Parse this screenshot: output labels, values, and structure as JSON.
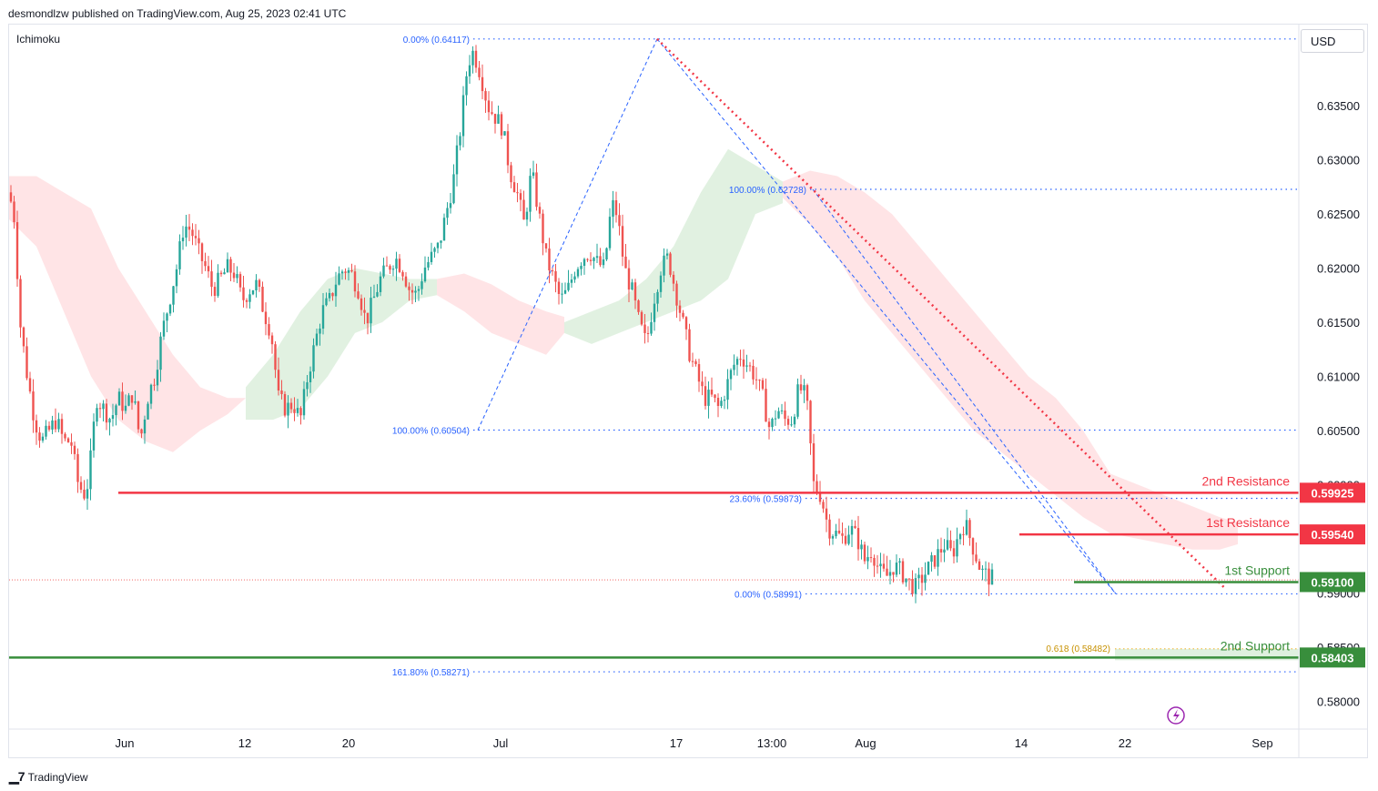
{
  "header": {
    "publisher_line": "desmondlzw published on TradingView.com, Aug 25, 2023 02:41 UTC"
  },
  "indicator": {
    "name": "Ichimoku"
  },
  "currency_button": {
    "label": "USD"
  },
  "footer": {
    "brand": "TradingView",
    "logo_icon": "tradingview-logo-icon"
  },
  "colors": {
    "bull": "#26a69a",
    "bear": "#ef5350",
    "fib": "#2962ff",
    "resistance": "#f23645",
    "support": "#388e3c",
    "golden": "#f7a600",
    "cloud_bull": "#c8e6c9",
    "cloud_bear": "#ffcdd2"
  },
  "chart_data": {
    "type": "candlestick",
    "instrument": "",
    "ylim": [
      0.5775,
      0.6425
    ],
    "y_ticks": [
      "0.63500",
      "0.63000",
      "0.62500",
      "0.62000",
      "0.61500",
      "0.61000",
      "0.60500",
      "0.60000",
      "0.59000",
      "0.58500",
      "0.58000"
    ],
    "x_ticks": [
      "Jun",
      "12",
      "20",
      "Jul",
      "17",
      "13:00",
      "Aug",
      "14",
      "22",
      "Sep"
    ],
    "grid": false,
    "close_path": [
      [
        0,
        0.627
      ],
      [
        6,
        0.6245
      ],
      [
        12,
        0.615
      ],
      [
        20,
        0.61
      ],
      [
        28,
        0.606
      ],
      [
        36,
        0.604
      ],
      [
        44,
        0.605
      ],
      [
        52,
        0.606
      ],
      [
        60,
        0.604
      ],
      [
        68,
        0.604
      ],
      [
        76,
        0.6
      ],
      [
        84,
        0.599
      ],
      [
        88,
        0.601
      ],
      [
        96,
        0.608
      ],
      [
        104,
        0.607
      ],
      [
        112,
        0.606
      ],
      [
        120,
        0.608
      ],
      [
        128,
        0.607
      ],
      [
        136,
        0.6085
      ],
      [
        144,
        0.604
      ],
      [
        152,
        0.608
      ],
      [
        160,
        0.61
      ],
      [
        168,
        0.614
      ],
      [
        176,
        0.617
      ],
      [
        184,
        0.62
      ],
      [
        192,
        0.624
      ],
      [
        200,
        0.6235
      ],
      [
        208,
        0.6215
      ],
      [
        216,
        0.62
      ],
      [
        224,
        0.618
      ],
      [
        232,
        0.619
      ],
      [
        240,
        0.62
      ],
      [
        248,
        0.6195
      ],
      [
        256,
        0.617
      ],
      [
        264,
        0.618
      ],
      [
        272,
        0.6185
      ],
      [
        280,
        0.616
      ],
      [
        288,
        0.614
      ],
      [
        296,
        0.608
      ],
      [
        304,
        0.607
      ],
      [
        312,
        0.6075
      ],
      [
        320,
        0.606
      ],
      [
        328,
        0.61
      ],
      [
        336,
        0.613
      ],
      [
        344,
        0.616
      ],
      [
        352,
        0.617
      ],
      [
        360,
        0.619
      ],
      [
        368,
        0.62
      ],
      [
        376,
        0.6195
      ],
      [
        384,
        0.618
      ],
      [
        392,
        0.615
      ],
      [
        400,
        0.617
      ],
      [
        408,
        0.619
      ],
      [
        416,
        0.62
      ],
      [
        424,
        0.621
      ],
      [
        432,
        0.62
      ],
      [
        440,
        0.618
      ],
      [
        448,
        0.6175
      ],
      [
        456,
        0.62
      ],
      [
        464,
        0.621
      ],
      [
        472,
        0.622
      ],
      [
        480,
        0.625
      ],
      [
        488,
        0.628
      ],
      [
        496,
        0.633
      ],
      [
        504,
        0.639
      ],
      [
        510,
        0.64
      ],
      [
        518,
        0.638
      ],
      [
        526,
        0.635
      ],
      [
        534,
        0.634
      ],
      [
        542,
        0.633
      ],
      [
        550,
        0.629
      ],
      [
        558,
        0.627
      ],
      [
        566,
        0.624
      ],
      [
        574,
        0.629
      ],
      [
        582,
        0.625
      ],
      [
        590,
        0.621
      ],
      [
        598,
        0.619
      ],
      [
        606,
        0.617
      ],
      [
        614,
        0.618
      ],
      [
        622,
        0.62
      ],
      [
        630,
        0.621
      ],
      [
        638,
        0.6215
      ],
      [
        646,
        0.6205
      ],
      [
        654,
        0.62
      ],
      [
        662,
        0.626
      ],
      [
        668,
        0.625
      ],
      [
        676,
        0.62
      ],
      [
        684,
        0.618
      ],
      [
        692,
        0.615
      ],
      [
        700,
        0.613
      ],
      [
        708,
        0.617
      ],
      [
        716,
        0.62
      ],
      [
        724,
        0.621
      ],
      [
        732,
        0.618
      ],
      [
        740,
        0.615
      ],
      [
        748,
        0.612
      ],
      [
        756,
        0.61
      ],
      [
        764,
        0.608
      ],
      [
        772,
        0.608
      ],
      [
        780,
        0.607
      ],
      [
        788,
        0.609
      ],
      [
        796,
        0.611
      ],
      [
        804,
        0.612
      ],
      [
        812,
        0.611
      ],
      [
        820,
        0.61
      ],
      [
        828,
        0.608
      ],
      [
        836,
        0.605
      ],
      [
        844,
        0.607
      ],
      [
        852,
        0.606
      ],
      [
        860,
        0.606
      ],
      [
        868,
        0.609
      ],
      [
        876,
        0.608
      ],
      [
        884,
        0.6
      ],
      [
        892,
        0.599
      ],
      [
        900,
        0.596
      ],
      [
        908,
        0.5955
      ],
      [
        916,
        0.595
      ],
      [
        924,
        0.596
      ],
      [
        932,
        0.595
      ],
      [
        940,
        0.593
      ],
      [
        948,
        0.594
      ],
      [
        956,
        0.592
      ],
      [
        964,
        0.5915
      ],
      [
        972,
        0.5925
      ],
      [
        980,
        0.592
      ],
      [
        988,
        0.591
      ],
      [
        996,
        0.5905
      ],
      [
        1004,
        0.5915
      ],
      [
        1012,
        0.5925
      ],
      [
        1020,
        0.5935
      ],
      [
        1028,
        0.5945
      ],
      [
        1036,
        0.5935
      ],
      [
        1044,
        0.5955
      ],
      [
        1050,
        0.5965
      ],
      [
        1056,
        0.595
      ],
      [
        1062,
        0.5935
      ],
      [
        1068,
        0.592
      ],
      [
        1076,
        0.5915
      ],
      [
        1082,
        0.5912
      ]
    ],
    "cloud_segments": [
      {
        "kind": "bear",
        "points": [
          [
            0,
            0.6285,
            0.6245
          ],
          [
            30,
            0.6285,
            0.622
          ],
          [
            60,
            0.627,
            0.616
          ],
          [
            90,
            0.6255,
            0.61
          ],
          [
            120,
            0.62,
            0.606
          ],
          [
            150,
            0.616,
            0.604
          ],
          [
            180,
            0.612,
            0.603
          ],
          [
            210,
            0.609,
            0.605
          ],
          [
            240,
            0.608,
            0.6065
          ],
          [
            260,
            0.608,
            0.608
          ]
        ]
      },
      {
        "kind": "bull",
        "points": [
          [
            260,
            0.609,
            0.606
          ],
          [
            290,
            0.612,
            0.606
          ],
          [
            320,
            0.616,
            0.607
          ],
          [
            350,
            0.619,
            0.61
          ],
          [
            380,
            0.62,
            0.614
          ],
          [
            410,
            0.6195,
            0.615
          ],
          [
            440,
            0.619,
            0.617
          ],
          [
            470,
            0.619,
            0.6175
          ]
        ]
      },
      {
        "kind": "bear",
        "points": [
          [
            470,
            0.619,
            0.6175
          ],
          [
            500,
            0.6195,
            0.616
          ],
          [
            530,
            0.6185,
            0.614
          ],
          [
            560,
            0.617,
            0.613
          ],
          [
            590,
            0.616,
            0.612
          ],
          [
            610,
            0.6155,
            0.614
          ]
        ]
      },
      {
        "kind": "bull",
        "points": [
          [
            610,
            0.615,
            0.614
          ],
          [
            640,
            0.616,
            0.613
          ],
          [
            670,
            0.617,
            0.614
          ],
          [
            700,
            0.619,
            0.615
          ],
          [
            730,
            0.622,
            0.616
          ],
          [
            760,
            0.627,
            0.617
          ],
          [
            790,
            0.631,
            0.619
          ],
          [
            820,
            0.6295,
            0.625
          ],
          [
            850,
            0.628,
            0.626
          ]
        ]
      },
      {
        "kind": "bear",
        "points": [
          [
            850,
            0.628,
            0.6265
          ],
          [
            880,
            0.629,
            0.624
          ],
          [
            910,
            0.6285,
            0.621
          ],
          [
            940,
            0.627,
            0.617
          ],
          [
            970,
            0.625,
            0.614
          ],
          [
            1000,
            0.622,
            0.611
          ],
          [
            1030,
            0.619,
            0.608
          ],
          [
            1060,
            0.616,
            0.605
          ],
          [
            1090,
            0.613,
            0.603
          ],
          [
            1120,
            0.61,
            0.601
          ],
          [
            1150,
            0.608,
            0.599
          ],
          [
            1180,
            0.605,
            0.597
          ],
          [
            1210,
            0.601,
            0.5955
          ],
          [
            1240,
            0.6,
            0.595
          ],
          [
            1270,
            0.599,
            0.5945
          ],
          [
            1300,
            0.598,
            0.594
          ],
          [
            1330,
            0.597,
            0.594
          ],
          [
            1350,
            0.5965,
            0.5945
          ]
        ]
      }
    ],
    "fib_levels": [
      {
        "label": "0.00% (0.64117)",
        "value": 0.64117
      },
      {
        "label": "100.00% (0.62728)",
        "value": 0.62728
      },
      {
        "label": "100.00% (0.60504)",
        "value": 0.60504
      },
      {
        "label": "23.60% (0.59873)",
        "value": 0.59873
      },
      {
        "label": "0.00% (0.58991)",
        "value": 0.58991
      },
      {
        "label": "161.80% (0.58271)",
        "value": 0.58271
      }
    ],
    "golden_level": {
      "label": "0.618 (0.58482)",
      "value": 0.58482
    },
    "key_levels": [
      {
        "name": "2nd Resistance",
        "value": 0.59925,
        "tag": "0.59925",
        "kind": "resistance"
      },
      {
        "name": "1st Resistance",
        "value": 0.5954,
        "tag": "0.59540",
        "kind": "resistance"
      },
      {
        "name": "1st Support",
        "value": 0.591,
        "tag": "0.59100",
        "kind": "support"
      },
      {
        "name": "2nd Support",
        "value": 0.58403,
        "tag": "0.58403",
        "kind": "support"
      }
    ],
    "current_price": 0.5912,
    "trendline": {
      "from": [
        0.64117
      ],
      "to": [
        0.5905
      ]
    }
  }
}
